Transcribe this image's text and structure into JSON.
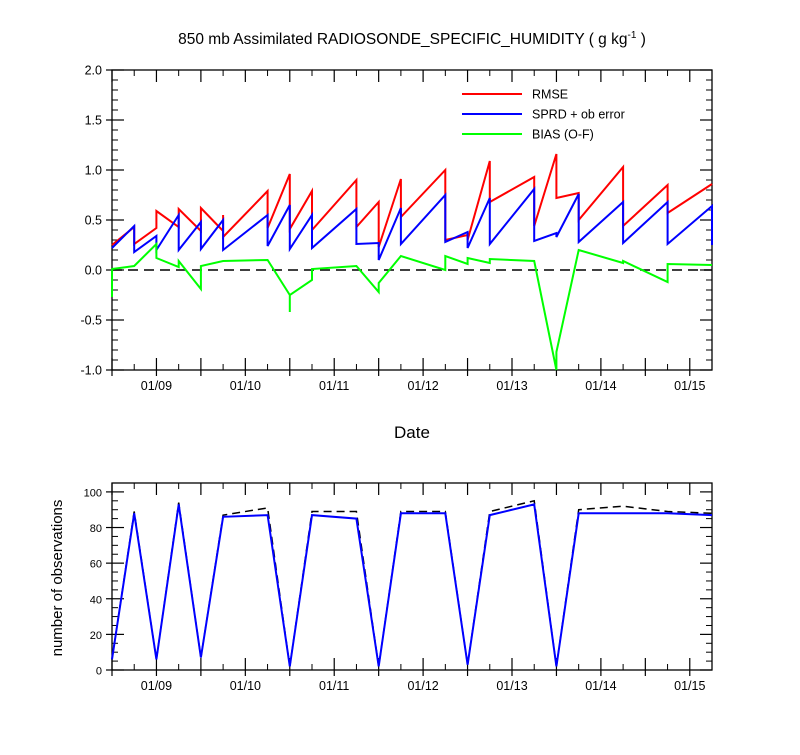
{
  "chart_data": [
    {
      "type": "line",
      "title": "850 mb Assimilated RADIOSONDE_SPECIFIC_HUMIDITY ( g kg",
      "title_superscript": "-1",
      "title_close": " )",
      "xlabel": "Date",
      "ylabel": "",
      "xlim": [
        0,
        13.5
      ],
      "ylim": [
        -1.0,
        2.0
      ],
      "yticks": [
        -1.0,
        -0.5,
        0.0,
        0.5,
        1.0,
        1.5,
        2.0
      ],
      "ytick_labels": [
        "-1.0",
        "-0.5",
        "0.0",
        "0.5",
        "1.0",
        "1.5",
        "2.0"
      ],
      "xtick_labels": [
        {
          "x": 1,
          "label": "01/09"
        },
        {
          "x": 3,
          "label": "01/10"
        },
        {
          "x": 5,
          "label": "01/11"
        },
        {
          "x": 7,
          "label": "01/12"
        },
        {
          "x": 9,
          "label": "01/13"
        },
        {
          "x": 11,
          "label": "01/14"
        },
        {
          "x": 13,
          "label": "01/15"
        }
      ],
      "grid": false,
      "legend_placement": "top-right",
      "zero_line": {
        "y": 0,
        "style": "dashed",
        "color": "#000000"
      },
      "series": [
        {
          "name": "RMSE",
          "color": "#ff0000",
          "points": [
            [
              0.0,
              0.25
            ],
            [
              0.5,
              0.43
            ],
            [
              0.5,
              0.26
            ],
            [
              1.0,
              0.42
            ],
            [
              1.0,
              0.59
            ],
            [
              1.5,
              0.43
            ],
            [
              1.5,
              0.61
            ],
            [
              2.0,
              0.39
            ],
            [
              2.0,
              0.62
            ],
            [
              2.5,
              0.39
            ],
            [
              2.5,
              0.55
            ],
            [
              2.5,
              0.33
            ],
            [
              3.5,
              0.79
            ],
            [
              3.5,
              0.42
            ],
            [
              4.0,
              0.96
            ],
            [
              4.0,
              0.41
            ],
            [
              4.5,
              0.79
            ],
            [
              4.5,
              0.4
            ],
            [
              5.5,
              0.9
            ],
            [
              5.5,
              0.43
            ],
            [
              6.0,
              0.68
            ],
            [
              6.0,
              0.23
            ],
            [
              6.5,
              0.91
            ],
            [
              6.5,
              0.53
            ],
            [
              7.5,
              1.0
            ],
            [
              7.5,
              0.3
            ],
            [
              8.0,
              0.35
            ],
            [
              8.0,
              0.3
            ],
            [
              8.5,
              1.09
            ],
            [
              8.5,
              0.68
            ],
            [
              9.5,
              0.93
            ],
            [
              9.5,
              0.44
            ],
            [
              10.0,
              1.16
            ],
            [
              10.0,
              0.72
            ],
            [
              10.5,
              0.77
            ],
            [
              10.5,
              0.5
            ],
            [
              11.5,
              1.03
            ],
            [
              11.5,
              0.44
            ],
            [
              12.5,
              0.85
            ],
            [
              12.5,
              0.57
            ],
            [
              13.5,
              0.86
            ]
          ]
        },
        {
          "name": "SPRD + ob error",
          "color": "#0000ff",
          "points": [
            [
              0.0,
              0.22
            ],
            [
              0.5,
              0.44
            ],
            [
              0.5,
              0.18
            ],
            [
              1.0,
              0.34
            ],
            [
              1.0,
              0.2
            ],
            [
              1.5,
              0.55
            ],
            [
              1.5,
              0.2
            ],
            [
              2.0,
              0.48
            ],
            [
              2.0,
              0.21
            ],
            [
              2.5,
              0.5
            ],
            [
              2.5,
              0.2
            ],
            [
              3.5,
              0.55
            ],
            [
              3.5,
              0.24
            ],
            [
              4.0,
              0.65
            ],
            [
              4.0,
              0.21
            ],
            [
              4.5,
              0.55
            ],
            [
              4.5,
              0.22
            ],
            [
              5.5,
              0.61
            ],
            [
              5.5,
              0.26
            ],
            [
              6.0,
              0.27
            ],
            [
              6.0,
              0.1
            ],
            [
              6.5,
              0.62
            ],
            [
              6.5,
              0.26
            ],
            [
              7.5,
              0.75
            ],
            [
              7.5,
              0.28
            ],
            [
              8.0,
              0.38
            ],
            [
              8.0,
              0.22
            ],
            [
              8.5,
              0.72
            ],
            [
              8.5,
              0.26
            ],
            [
              9.5,
              0.81
            ],
            [
              9.5,
              0.29
            ],
            [
              10.0,
              0.37
            ],
            [
              10.0,
              0.33
            ],
            [
              10.5,
              0.76
            ],
            [
              10.5,
              0.28
            ],
            [
              11.5,
              0.68
            ],
            [
              11.5,
              0.27
            ],
            [
              12.5,
              0.68
            ],
            [
              12.5,
              0.26
            ],
            [
              13.5,
              0.64
            ],
            [
              13.5,
              0.25
            ]
          ]
        },
        {
          "name": "BIAS (O-F)",
          "color": "#00ff00",
          "points": [
            [
              0.0,
              -0.27
            ],
            [
              0.0,
              0.01
            ],
            [
              0.5,
              0.04
            ],
            [
              1.0,
              0.26
            ],
            [
              1.0,
              0.12
            ],
            [
              1.5,
              0.03
            ],
            [
              1.5,
              0.09
            ],
            [
              2.0,
              -0.19
            ],
            [
              2.0,
              0.04
            ],
            [
              2.5,
              0.09
            ],
            [
              3.5,
              0.1
            ],
            [
              4.0,
              -0.25
            ],
            [
              4.0,
              -0.42
            ],
            [
              4.0,
              -0.25
            ],
            [
              4.5,
              -0.1
            ],
            [
              4.5,
              0.01
            ],
            [
              5.5,
              0.04
            ],
            [
              6.0,
              -0.22
            ],
            [
              6.0,
              -0.13
            ],
            [
              6.5,
              0.14
            ],
            [
              7.5,
              0.0
            ],
            [
              7.5,
              0.14
            ],
            [
              8.0,
              0.06
            ],
            [
              8.0,
              0.12
            ],
            [
              8.5,
              0.07
            ],
            [
              8.5,
              0.11
            ],
            [
              9.5,
              0.09
            ],
            [
              10.0,
              -1.0
            ],
            [
              10.0,
              -0.82
            ],
            [
              10.5,
              0.2
            ],
            [
              11.5,
              0.07
            ],
            [
              11.5,
              0.09
            ],
            [
              12.5,
              -0.12
            ],
            [
              12.5,
              0.06
            ],
            [
              13.5,
              0.05
            ]
          ]
        }
      ]
    },
    {
      "type": "line",
      "title": "",
      "xlabel": "",
      "ylabel": "number of observations",
      "xlim": [
        0,
        13.5
      ],
      "ylim": [
        0,
        105
      ],
      "yticks": [
        0,
        20,
        40,
        60,
        80,
        100
      ],
      "ytick_labels": [
        "0",
        "20",
        "40",
        "60",
        "80",
        "100"
      ],
      "xtick_labels": [
        {
          "x": 1,
          "label": "01/09"
        },
        {
          "x": 3,
          "label": "01/10"
        },
        {
          "x": 5,
          "label": "01/11"
        },
        {
          "x": 7,
          "label": "01/12"
        },
        {
          "x": 9,
          "label": "01/13"
        },
        {
          "x": 11,
          "label": "01/14"
        },
        {
          "x": 13,
          "label": "01/15"
        }
      ],
      "grid": false,
      "series": [
        {
          "role": "possible observations",
          "style": "dashed",
          "color": "#000000",
          "points": [
            [
              0.0,
              6
            ],
            [
              0.5,
              89
            ],
            [
              1.0,
              6
            ],
            [
              1.5,
              94
            ],
            [
              2.0,
              7
            ],
            [
              2.5,
              87
            ],
            [
              3.5,
              91
            ],
            [
              4.0,
              2
            ],
            [
              4.5,
              89
            ],
            [
              5.5,
              89
            ],
            [
              6.0,
              2
            ],
            [
              6.5,
              89
            ],
            [
              7.5,
              89
            ],
            [
              8.0,
              3
            ],
            [
              8.5,
              89
            ],
            [
              9.5,
              95
            ],
            [
              10.0,
              2
            ],
            [
              10.5,
              90
            ],
            [
              11.5,
              92
            ],
            [
              12.5,
              89
            ],
            [
              13.5,
              88
            ]
          ]
        },
        {
          "role": "assimilated observations",
          "style": "solid",
          "color": "#0000ff",
          "points": [
            [
              0.0,
              6
            ],
            [
              0.5,
              88
            ],
            [
              1.0,
              6
            ],
            [
              1.5,
              93
            ],
            [
              2.0,
              7
            ],
            [
              2.5,
              86
            ],
            [
              3.5,
              87
            ],
            [
              4.0,
              2
            ],
            [
              4.5,
              87
            ],
            [
              5.5,
              85
            ],
            [
              6.0,
              2
            ],
            [
              6.5,
              88
            ],
            [
              7.5,
              88
            ],
            [
              8.0,
              3
            ],
            [
              8.5,
              87
            ],
            [
              9.5,
              93
            ],
            [
              10.0,
              2
            ],
            [
              10.5,
              88
            ],
            [
              11.5,
              88
            ],
            [
              12.5,
              88
            ],
            [
              13.5,
              87
            ]
          ]
        }
      ]
    }
  ]
}
